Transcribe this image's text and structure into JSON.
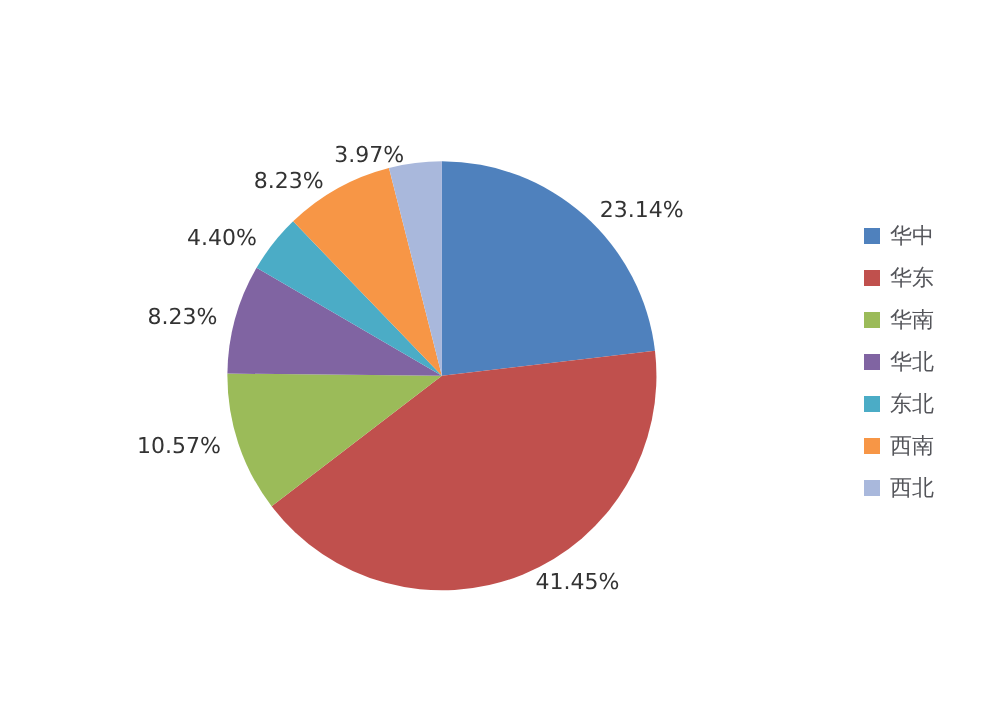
{
  "chart_data": {
    "type": "pie",
    "categories": [
      "华中",
      "华东",
      "华南",
      "华北",
      "东北",
      "西南",
      "西北"
    ],
    "values": [
      23.14,
      41.45,
      10.57,
      8.23,
      4.4,
      8.23,
      3.97
    ],
    "value_labels": [
      "23.14%",
      "41.45%",
      "10.57%",
      "8.23%",
      "4.40%",
      "8.23%",
      "3.97%"
    ],
    "colors": [
      "#4f81bd",
      "#c0504d",
      "#9bbb59",
      "#8064a2",
      "#4bacc6",
      "#f79646",
      "#a9b8dc"
    ],
    "legend": "right"
  }
}
